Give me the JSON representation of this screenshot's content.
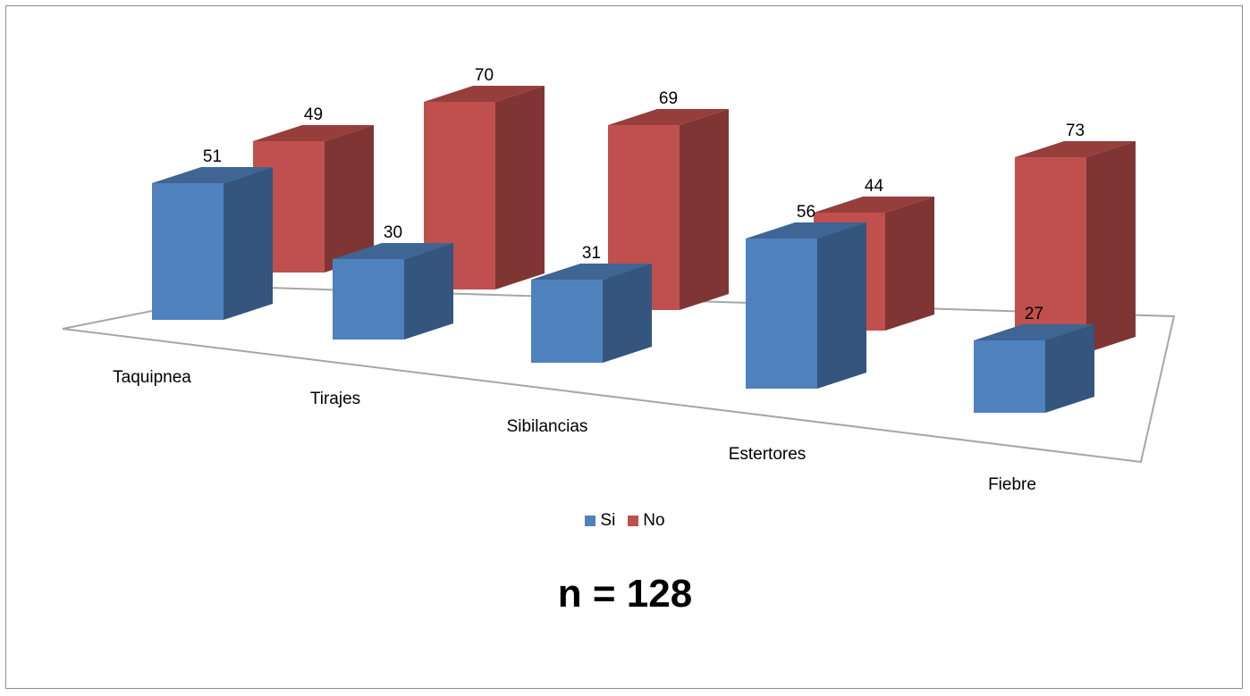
{
  "chart_data": {
    "type": "bar",
    "categories": [
      "Taquipnea",
      "Tirajes",
      "Sibilancias",
      "Estertores",
      "Fiebre"
    ],
    "series": [
      {
        "name": "Si",
        "values": [
          51,
          30,
          31,
          56,
          27
        ],
        "color": "#4f81bd"
      },
      {
        "name": "No",
        "values": [
          49,
          70,
          69,
          44,
          73
        ],
        "color": "#c0504d"
      }
    ],
    "value_labels": true,
    "three_d": true,
    "legend": "bottom",
    "grid": false,
    "annotation": "n = 128"
  }
}
